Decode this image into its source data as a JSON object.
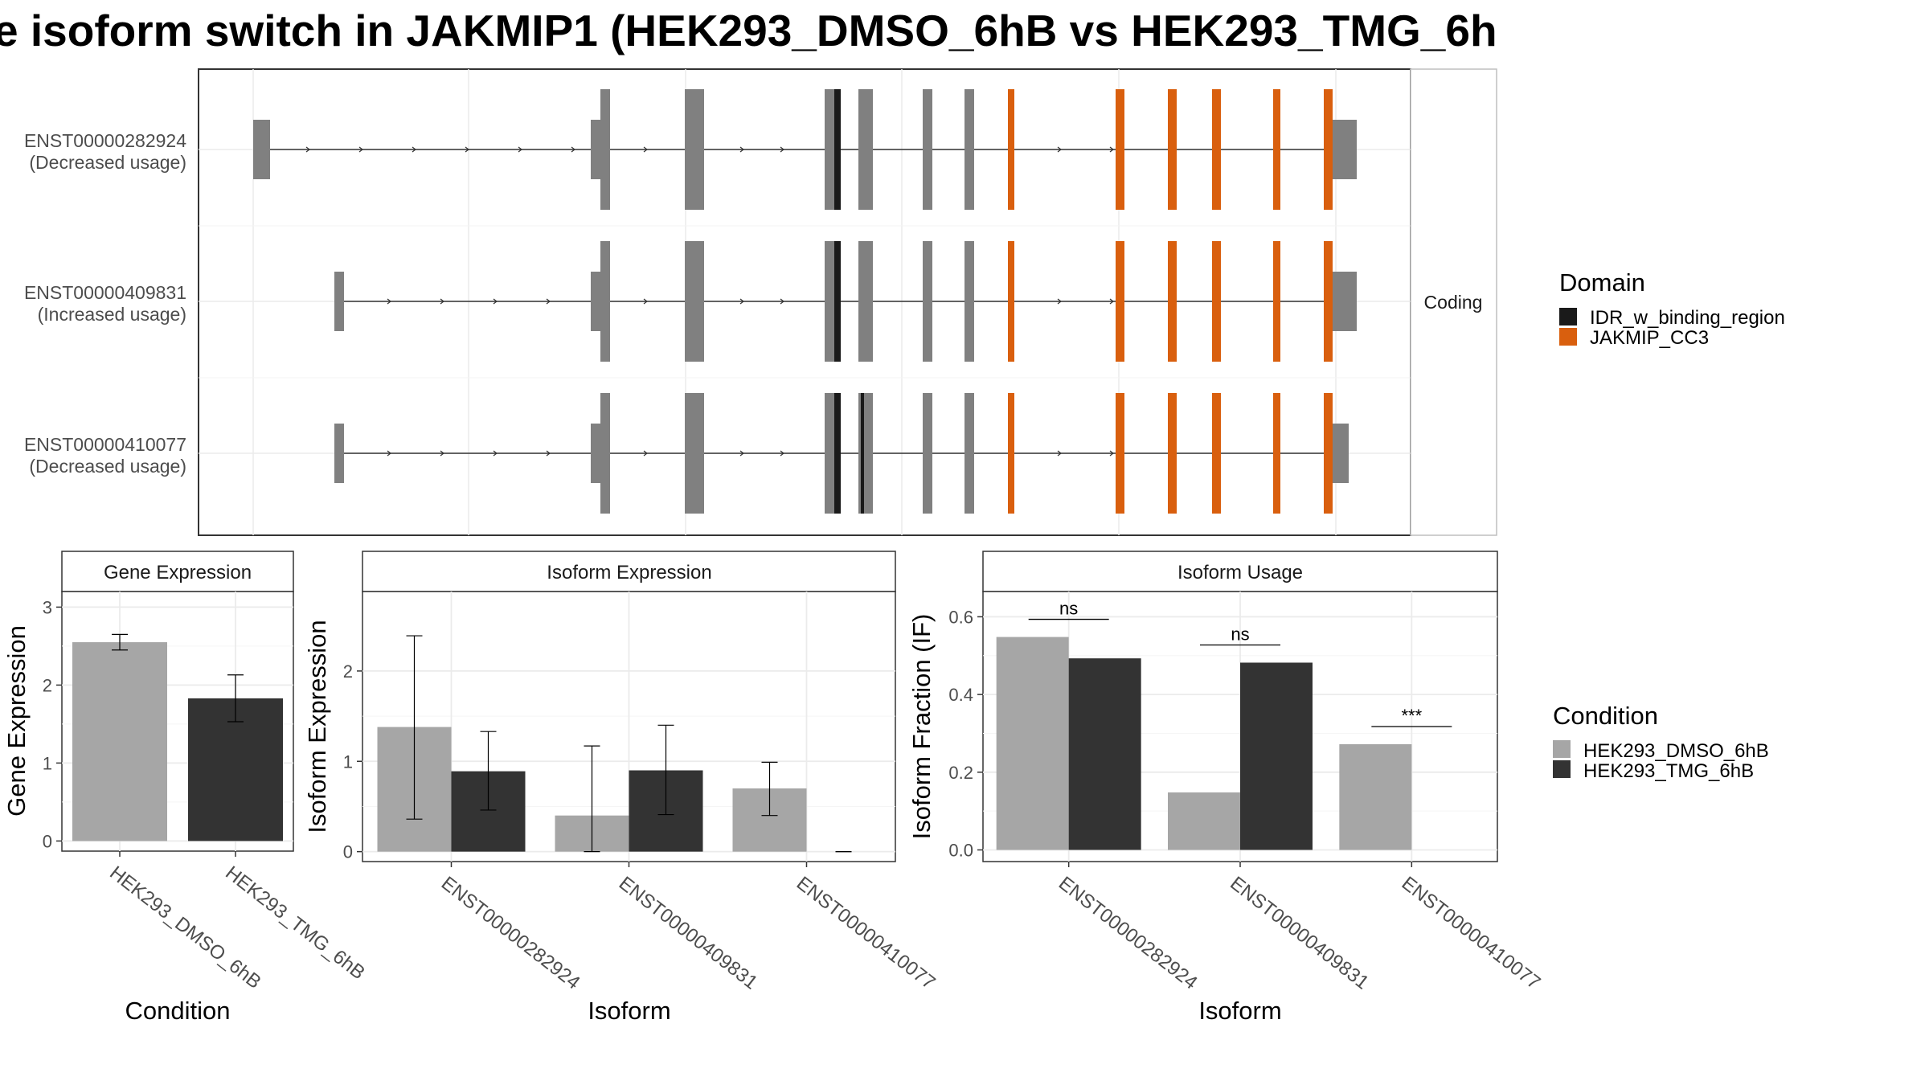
{
  "title": "e isoform switch in JAKMIP1 (HEK293_DMSO_6hB vs HEK293_TMG_6h",
  "colors": {
    "exon": "#808080",
    "idr": "#1a1a1a",
    "cc3": "#d95f0e",
    "dmso": "#a6a6a6",
    "tmg": "#333333",
    "grid": "#ebebeb",
    "strip_bg": "#ffffff"
  },
  "structure": {
    "facet_label": "Coding",
    "transcripts": [
      {
        "id": "ENST00000282924",
        "usage": "(Decreased usage)"
      },
      {
        "id": "ENST00000409831",
        "usage": "(Increased usage)"
      },
      {
        "id": "ENST00000410077",
        "usage": "(Decreased usage)"
      }
    ],
    "legend": {
      "title": "Domain",
      "items": [
        {
          "label": "IDR_w_binding_region",
          "color": "#1a1a1a"
        },
        {
          "label": "JAKMIP_CC3",
          "color": "#d95f0e"
        }
      ]
    }
  },
  "chart_data": [
    {
      "type": "bar",
      "title": "Gene Expression",
      "xlabel": "Condition",
      "ylabel": "Gene Expression",
      "categories": [
        "HEK293_DMSO_6hB",
        "HEK293_TMG_6hB"
      ],
      "values": [
        2.55,
        1.83
      ],
      "errors": [
        [
          2.45,
          2.65
        ],
        [
          1.53,
          2.13
        ]
      ],
      "ylim": [
        -0.13,
        3.2
      ],
      "yticks": [
        "0",
        "1",
        "2",
        "3"
      ]
    },
    {
      "type": "bar",
      "title": "Isoform Expression",
      "xlabel": "Isoform",
      "ylabel": "Isoform Expression",
      "categories": [
        "ENST00000282924",
        "ENST00000409831",
        "ENST00000410077"
      ],
      "series": [
        {
          "name": "HEK293_DMSO_6hB",
          "values": [
            1.38,
            0.4,
            0.7
          ],
          "errors": [
            [
              0.36,
              2.39
            ],
            [
              0.0,
              1.17
            ],
            [
              0.4,
              0.99
            ]
          ]
        },
        {
          "name": "HEK293_TMG_6hB",
          "values": [
            0.89,
            0.9,
            0.0
          ],
          "errors": [
            [
              0.46,
              1.33
            ],
            [
              0.41,
              1.4
            ],
            [
              0.0,
              0.0
            ]
          ]
        }
      ],
      "ylim": [
        -0.11,
        2.88
      ],
      "yticks": [
        "0",
        "1",
        "2"
      ]
    },
    {
      "type": "bar",
      "title": "Isoform Usage",
      "xlabel": "Isoform",
      "ylabel": "Isoform Fraction (IF)",
      "categories": [
        "ENST00000282924",
        "ENST00000409831",
        "ENST00000410077"
      ],
      "series": [
        {
          "name": "HEK293_DMSO_6hB",
          "values": [
            0.548,
            0.148,
            0.272
          ]
        },
        {
          "name": "HEK293_TMG_6hB",
          "values": [
            0.493,
            0.482,
            0.0
          ]
        }
      ],
      "significance": [
        "ns",
        "ns",
        "***"
      ],
      "ylim": [
        -0.03,
        0.665
      ],
      "yticks": [
        "0.0",
        "0.2",
        "0.4",
        "0.6"
      ]
    }
  ],
  "condition_legend": {
    "title": "Condition",
    "items": [
      {
        "label": "HEK293_DMSO_6hB",
        "color": "#a6a6a6"
      },
      {
        "label": "HEK293_TMG_6hB",
        "color": "#333333"
      }
    ]
  }
}
